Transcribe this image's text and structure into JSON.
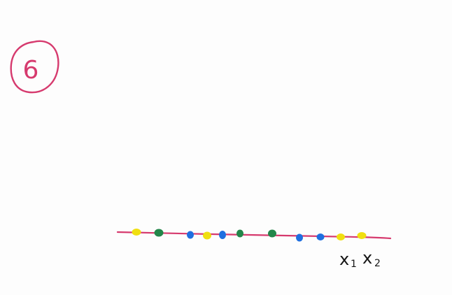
{
  "badge": {
    "label": "6",
    "color": "#d63a6e"
  },
  "number_line": {
    "color": "#d63a6e",
    "labels": [
      {
        "main": "x",
        "sub": "1"
      },
      {
        "main": "x",
        "sub": "2"
      }
    ]
  },
  "points": [
    {
      "color": "yellow"
    },
    {
      "color": "green"
    },
    {
      "color": "blue"
    },
    {
      "color": "yellow"
    },
    {
      "color": "blue"
    },
    {
      "color": "green"
    },
    {
      "color": "green"
    },
    {
      "color": "blue"
    },
    {
      "color": "blue"
    },
    {
      "color": "yellow"
    },
    {
      "color": "yellow"
    }
  ],
  "colors": {
    "yellow": "#f0df10",
    "green": "#23864a",
    "blue": "#1f6fe0",
    "ink": "#151515"
  }
}
